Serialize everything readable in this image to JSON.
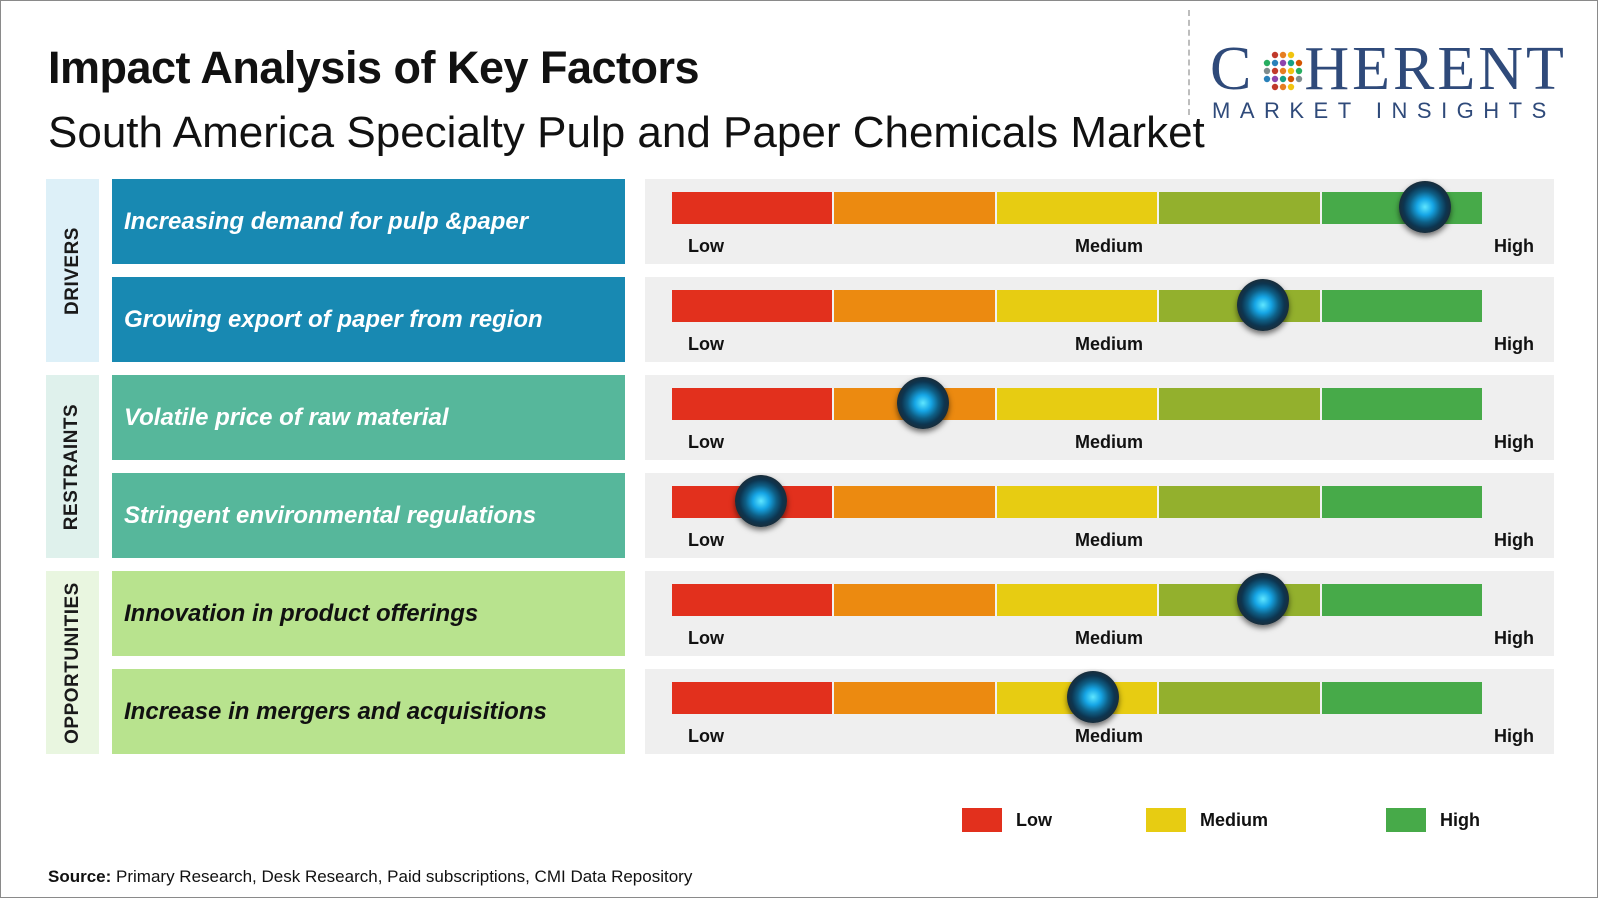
{
  "header": {
    "title": "Impact Analysis of Key Factors",
    "subtitle": "South America Specialty Pulp and Paper Chemicals Market"
  },
  "logo": {
    "word_left": "C",
    "word_right": "HERENT",
    "tagline": "MARKET INSIGHTS",
    "color": "#2f4a7a"
  },
  "colors": {
    "low": "#e2301d",
    "low_mid": "#ec8a10",
    "medium": "#e7cc12",
    "mid_high": "#93b02d",
    "high": "#47aa49",
    "drivers_label_bg": "#ddf0f8",
    "drivers_factor_bg": "#1889b2",
    "restraints_label_bg": "#dff1ec",
    "restraints_factor_bg": "#56b79b",
    "opportunities_label_bg": "#e9f6e0",
    "opportunities_factor_bg": "#b8e38e"
  },
  "scale_labels": {
    "low": "Low",
    "medium": "Medium",
    "high": "High"
  },
  "chart_data": {
    "type": "bar",
    "scale": [
      "Low",
      "Medium",
      "High"
    ],
    "scale_range": [
      0,
      1
    ],
    "categories": [
      {
        "name": "DRIVERS",
        "factors": [
          {
            "label": "Increasing demand for pulp &paper",
            "impact": 0.93
          },
          {
            "label": "Growing export of paper from region",
            "impact": 0.73
          }
        ]
      },
      {
        "name": "RESTRAINTS",
        "factors": [
          {
            "label": "Volatile price of raw material",
            "impact": 0.31
          },
          {
            "label": "Stringent environmental regulations",
            "impact": 0.11
          }
        ]
      },
      {
        "name": "OPPORTUNITIES",
        "factors": [
          {
            "label": "Innovation in product offerings",
            "impact": 0.73
          },
          {
            "label": "Increase in mergers and acquisitions",
            "impact": 0.52
          }
        ]
      }
    ]
  },
  "legend": [
    {
      "label": "Low",
      "color": "#e2301d"
    },
    {
      "label": "Medium",
      "color": "#e7cc12"
    },
    {
      "label": "High",
      "color": "#47aa49"
    }
  ],
  "source": {
    "label": "Source:",
    "text": " Primary Research, Desk Research, Paid subscriptions, CMI Data Repository"
  }
}
